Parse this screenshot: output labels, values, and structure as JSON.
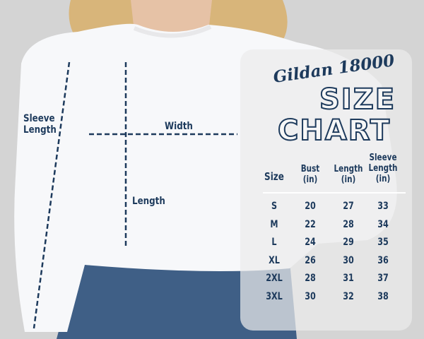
{
  "diagram": {
    "sleeve_label": "Sleeve Length",
    "width_label": "Width",
    "length_label": "Length"
  },
  "chart": {
    "brand": "Gildan 18000",
    "title_line1": "SIZE",
    "title_line2": "CHART",
    "headers": [
      "Size",
      "Bust (in)",
      "Length (in)",
      "Sleeve Length (in)"
    ],
    "rows": [
      [
        "S",
        "20",
        "27",
        "33"
      ],
      [
        "M",
        "22",
        "28",
        "34"
      ],
      [
        "L",
        "24",
        "29",
        "35"
      ],
      [
        "XL",
        "26",
        "30",
        "36"
      ],
      [
        "2XL",
        "28",
        "31",
        "37"
      ],
      [
        "3XL",
        "30",
        "32",
        "38"
      ]
    ]
  },
  "colors": {
    "text": "#1d3a5c",
    "background": "#d4d4d4"
  }
}
